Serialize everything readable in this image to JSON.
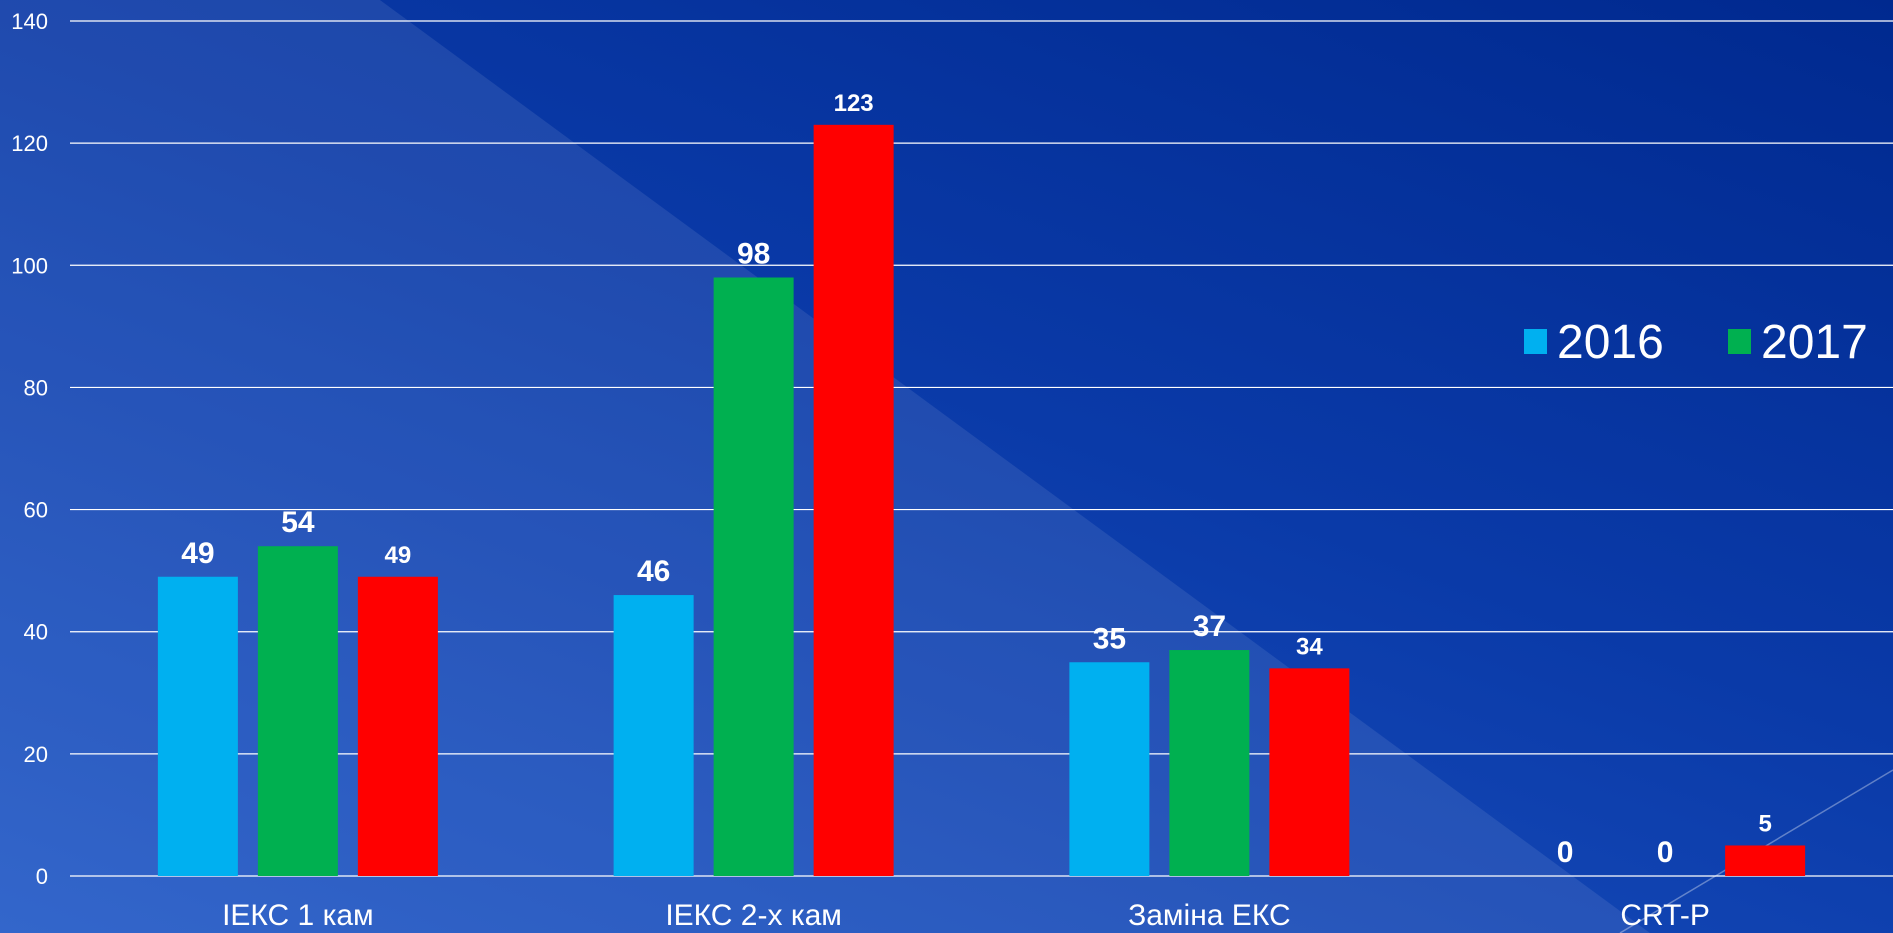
{
  "chart_data": {
    "type": "bar",
    "categories": [
      "ІЕКС 1 кам",
      "ІЕКС 2-х кам",
      "Заміна ЕКС",
      "CRT-P"
    ],
    "series": [
      {
        "name": "2016",
        "color": "#00b0f0",
        "values": [
          49,
          46,
          35,
          0
        ]
      },
      {
        "name": "2017",
        "color": "#00b050",
        "values": [
          54,
          98,
          37,
          0
        ]
      },
      {
        "name": "",
        "color": "#ff0000",
        "values": [
          49,
          123,
          34,
          5
        ]
      }
    ],
    "title": "",
    "xlabel": "",
    "ylabel": "",
    "ylim": [
      0,
      140
    ],
    "yticks": [
      0,
      20,
      40,
      60,
      80,
      100,
      120,
      140
    ],
    "grid": true,
    "legend_position": "right"
  }
}
